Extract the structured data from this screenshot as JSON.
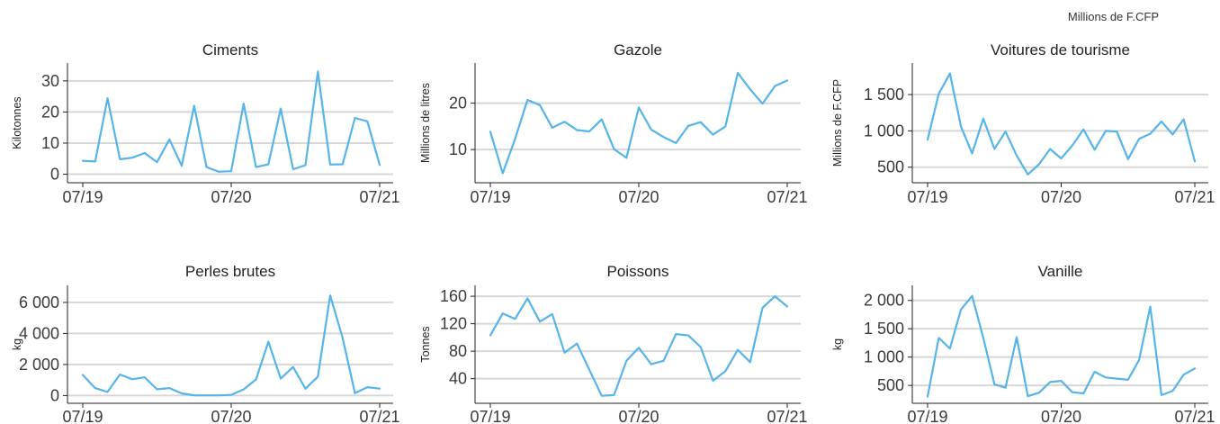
{
  "chart_data": [
    {
      "type": "line",
      "title": "Ciments",
      "ylabel": "Kilotonnes",
      "x_tick_labels": [
        "07/19",
        "07/20",
        "07/21"
      ],
      "yticks": [
        0,
        10,
        20,
        30
      ],
      "ytick_labels": [
        "0",
        "10",
        "20",
        "30"
      ],
      "ylim": [
        -1,
        34
      ],
      "grid": true,
      "color": "#56B4E9",
      "values": [
        4.3,
        4.1,
        24.4,
        4.8,
        5.3,
        6.8,
        3.9,
        11.2,
        2.7,
        22.0,
        2.3,
        0.8,
        1.0,
        22.7,
        2.3,
        3.2,
        21.1,
        1.6,
        2.9,
        33.0,
        3.1,
        3.2,
        18.1,
        17.0,
        3.0
      ]
    },
    {
      "type": "line",
      "title": "Gazole",
      "ylabel": "Millions de litres",
      "x_tick_labels": [
        "07/19",
        "07/20",
        "07/21"
      ],
      "yticks": [
        10,
        20
      ],
      "ytick_labels": [
        "10",
        "20"
      ],
      "ylim": [
        4,
        27.5
      ],
      "grid": true,
      "color": "#56B4E9",
      "values": [
        13.8,
        4.9,
        12.3,
        20.7,
        19.6,
        14.7,
        16.0,
        14.2,
        13.9,
        16.5,
        10.1,
        8.2,
        19.1,
        14.3,
        12.7,
        11.4,
        15.1,
        15.9,
        13.2,
        15.0,
        26.5,
        23.0,
        19.9,
        23.7,
        24.9
      ]
    },
    {
      "type": "line",
      "title": "Voitures de tourisme",
      "ylabel": "Millions de F.CFP",
      "note": "Millions de F.CFP",
      "x_tick_labels": [
        "07/19",
        "07/20",
        "07/21"
      ],
      "yticks": [
        500,
        1000,
        1500
      ],
      "ytick_labels": [
        "500",
        "1 000",
        "1 500"
      ],
      "ylim": [
        360,
        1860
      ],
      "grid": true,
      "color": "#56B4E9",
      "values": [
        880,
        1510,
        1790,
        1060,
        690,
        1170,
        750,
        990,
        660,
        400,
        540,
        750,
        620,
        800,
        1020,
        740,
        1000,
        990,
        610,
        890,
        960,
        1130,
        950,
        1160,
        580
      ]
    },
    {
      "type": "line",
      "title": "Perles brutes",
      "ylabel": "kg",
      "x_tick_labels": [
        "07/19",
        "07/20",
        "07/21"
      ],
      "yticks": [
        0,
        2000,
        4000,
        6000
      ],
      "ytick_labels": [
        "0",
        "2 000",
        "4 000",
        "6 000"
      ],
      "ylim": [
        -150,
        6750
      ],
      "grid": true,
      "color": "#56B4E9",
      "values": [
        1330,
        480,
        230,
        1360,
        1050,
        1180,
        400,
        480,
        140,
        20,
        10,
        10,
        50,
        400,
        1030,
        3470,
        1090,
        1840,
        440,
        1220,
        6450,
        3720,
        160,
        540,
        450
      ]
    },
    {
      "type": "line",
      "title": "Poissons",
      "ylabel": "Tonnes",
      "x_tick_labels": [
        "07/19",
        "07/20",
        "07/21"
      ],
      "yticks": [
        40,
        80,
        120,
        160
      ],
      "ytick_labels": [
        "40",
        "80",
        "120",
        "160"
      ],
      "ylim": [
        12,
        168
      ],
      "grid": true,
      "color": "#56B4E9",
      "values": [
        103,
        135,
        127,
        157,
        123,
        134,
        78,
        91,
        53,
        15,
        16,
        66,
        85,
        61,
        66,
        105,
        103,
        86,
        37,
        51,
        82,
        64,
        143,
        160,
        145
      ]
    },
    {
      "type": "line",
      "title": "Vanille",
      "ylabel": "kg",
      "x_tick_labels": [
        "07/19",
        "07/20",
        "07/21"
      ],
      "yticks": [
        500,
        1000,
        1500,
        2000
      ],
      "ytick_labels": [
        "500",
        "1 000",
        "1 500",
        "2 000"
      ],
      "ylim": [
        280,
        2170
      ],
      "grid": true,
      "color": "#56B4E9",
      "values": [
        300,
        1340,
        1150,
        1840,
        2080,
        1340,
        520,
        460,
        1350,
        310,
        370,
        560,
        580,
        380,
        360,
        740,
        640,
        620,
        600,
        950,
        1890,
        330,
        400,
        690,
        800
      ]
    }
  ]
}
